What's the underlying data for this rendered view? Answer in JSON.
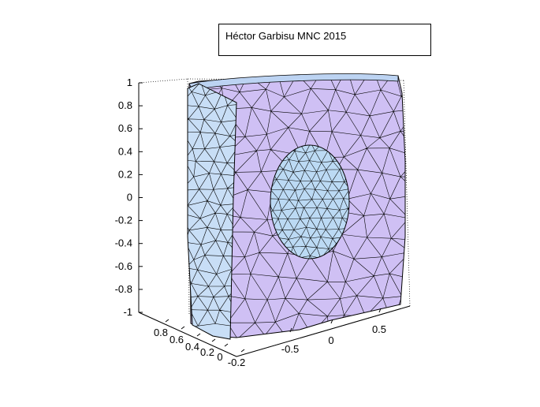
{
  "figure": {
    "annotation": "Héctor Garbisu MNC 2015",
    "z_ticks": [
      "1",
      "0.8",
      "0.6",
      "0.4",
      "0.2",
      "0",
      "-0.2",
      "-0.4",
      "-0.6",
      "-0.8",
      "-1"
    ],
    "y_ticks": [
      "0.8",
      "0.6",
      "0.4",
      "0.2",
      "0",
      "-0.2"
    ],
    "x_ticks": [
      "-0.5",
      "0",
      "0.5"
    ],
    "colors": {
      "outer_face": "#cfc0f4",
      "left_face": "#c8def6",
      "sphere": "#bcdaf4",
      "edge": "#000000",
      "background": "#ffffff"
    }
  }
}
